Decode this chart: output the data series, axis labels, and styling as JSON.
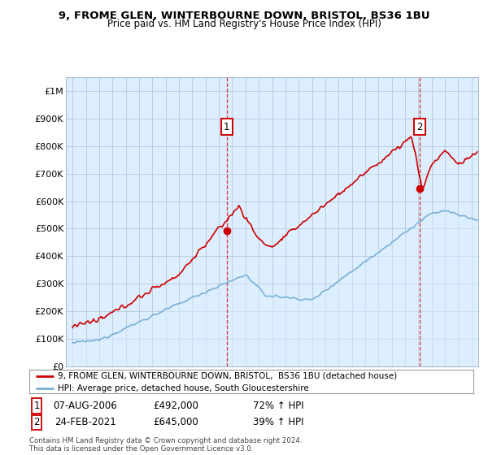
{
  "title": "9, FROME GLEN, WINTERBOURNE DOWN, BRISTOL, BS36 1BU",
  "subtitle": "Price paid vs. HM Land Registry's House Price Index (HPI)",
  "ylabel_ticks": [
    "£0",
    "£100K",
    "£200K",
    "£300K",
    "£400K",
    "£500K",
    "£600K",
    "£700K",
    "£800K",
    "£900K",
    "£1M"
  ],
  "ytick_values": [
    0,
    100000,
    200000,
    300000,
    400000,
    500000,
    600000,
    700000,
    800000,
    900000,
    1000000
  ],
  "ylim": [
    0,
    1050000
  ],
  "xlim_start": 1994.5,
  "xlim_end": 2025.5,
  "red_color": "#cc0000",
  "blue_color": "#7ab0d4",
  "fill_color": "#ddeeff",
  "marker1_date": 2006.58,
  "marker1_value": 492000,
  "marker1_label": "1",
  "marker2_date": 2021.12,
  "marker2_value": 645000,
  "marker2_label": "2",
  "legend_line1": "9, FROME GLEN, WINTERBOURNE DOWN, BRISTOL,  BS36 1BU (detached house)",
  "legend_line2": "HPI: Average price, detached house, South Gloucestershire",
  "table_row1": [
    "1",
    "07-AUG-2006",
    "£492,000",
    "72% ↑ HPI"
  ],
  "table_row2": [
    "2",
    "24-FEB-2021",
    "£645,000",
    "39% ↑ HPI"
  ],
  "footer": "Contains HM Land Registry data © Crown copyright and database right 2024.\nThis data is licensed under the Open Government Licence v3.0.",
  "background_color": "#ffffff",
  "plot_bg_color": "#ddeeff",
  "grid_color": "#bbccdd"
}
